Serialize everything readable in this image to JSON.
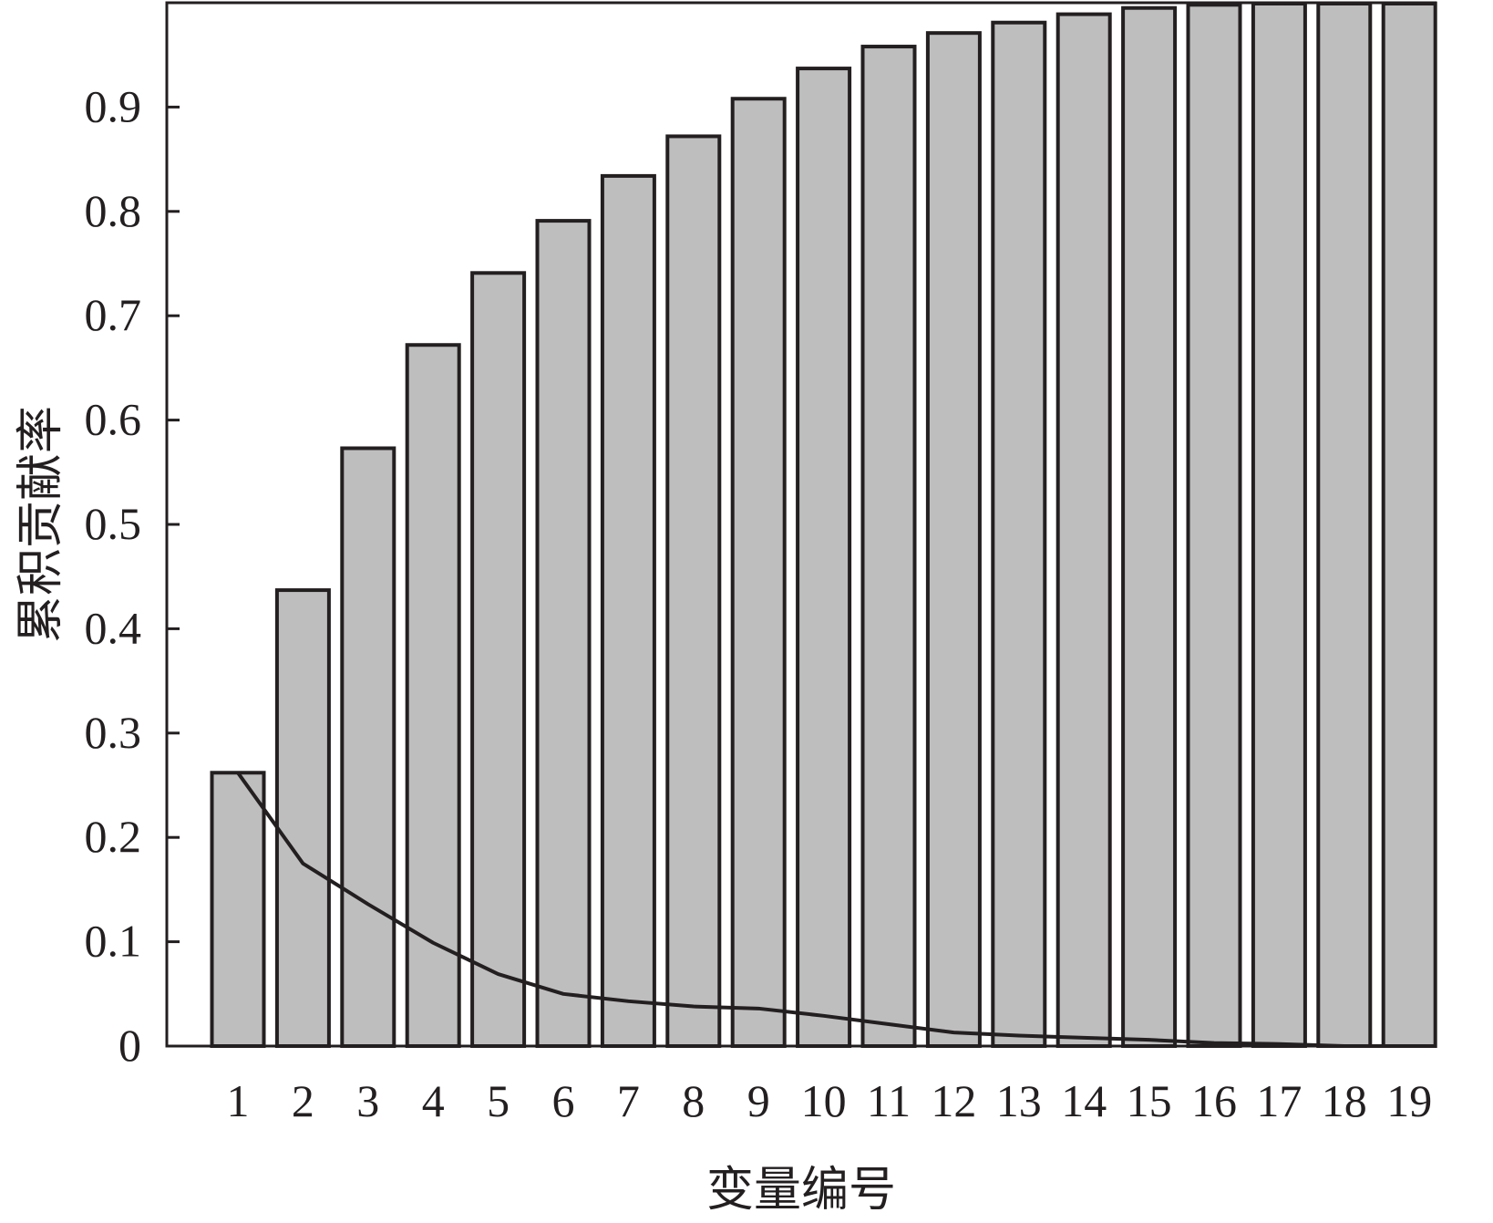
{
  "chart_data": {
    "type": "bar",
    "categories": [
      "1",
      "2",
      "3",
      "4",
      "5",
      "6",
      "7",
      "8",
      "9",
      "10",
      "11",
      "12",
      "13",
      "14",
      "15",
      "16",
      "17",
      "18",
      "19"
    ],
    "series": [
      {
        "type": "bar",
        "values": [
          0.262,
          0.437,
          0.573,
          0.672,
          0.741,
          0.791,
          0.834,
          0.872,
          0.908,
          0.937,
          0.958,
          0.971,
          0.981,
          0.989,
          0.995,
          0.998,
          1.0,
          1.0,
          1.0
        ]
      },
      {
        "type": "line",
        "values": [
          0.262,
          0.175,
          0.136,
          0.099,
          0.069,
          0.05,
          0.043,
          0.038,
          0.036,
          0.029,
          0.021,
          0.013,
          0.01,
          0.008,
          0.006,
          0.003,
          0.002,
          0.0,
          0.0
        ]
      }
    ],
    "yticks": [
      "0",
      "0.1",
      "0.2",
      "0.3",
      "0.4",
      "0.5",
      "0.6",
      "0.7",
      "0.8",
      "0.9"
    ],
    "ylim": [
      0,
      1.0
    ],
    "xlabel": "变量编号",
    "ylabel": "累积贡献率",
    "grid": false,
    "colors": {
      "bar_fill": "#bebebe",
      "stroke": "#231f20"
    }
  }
}
